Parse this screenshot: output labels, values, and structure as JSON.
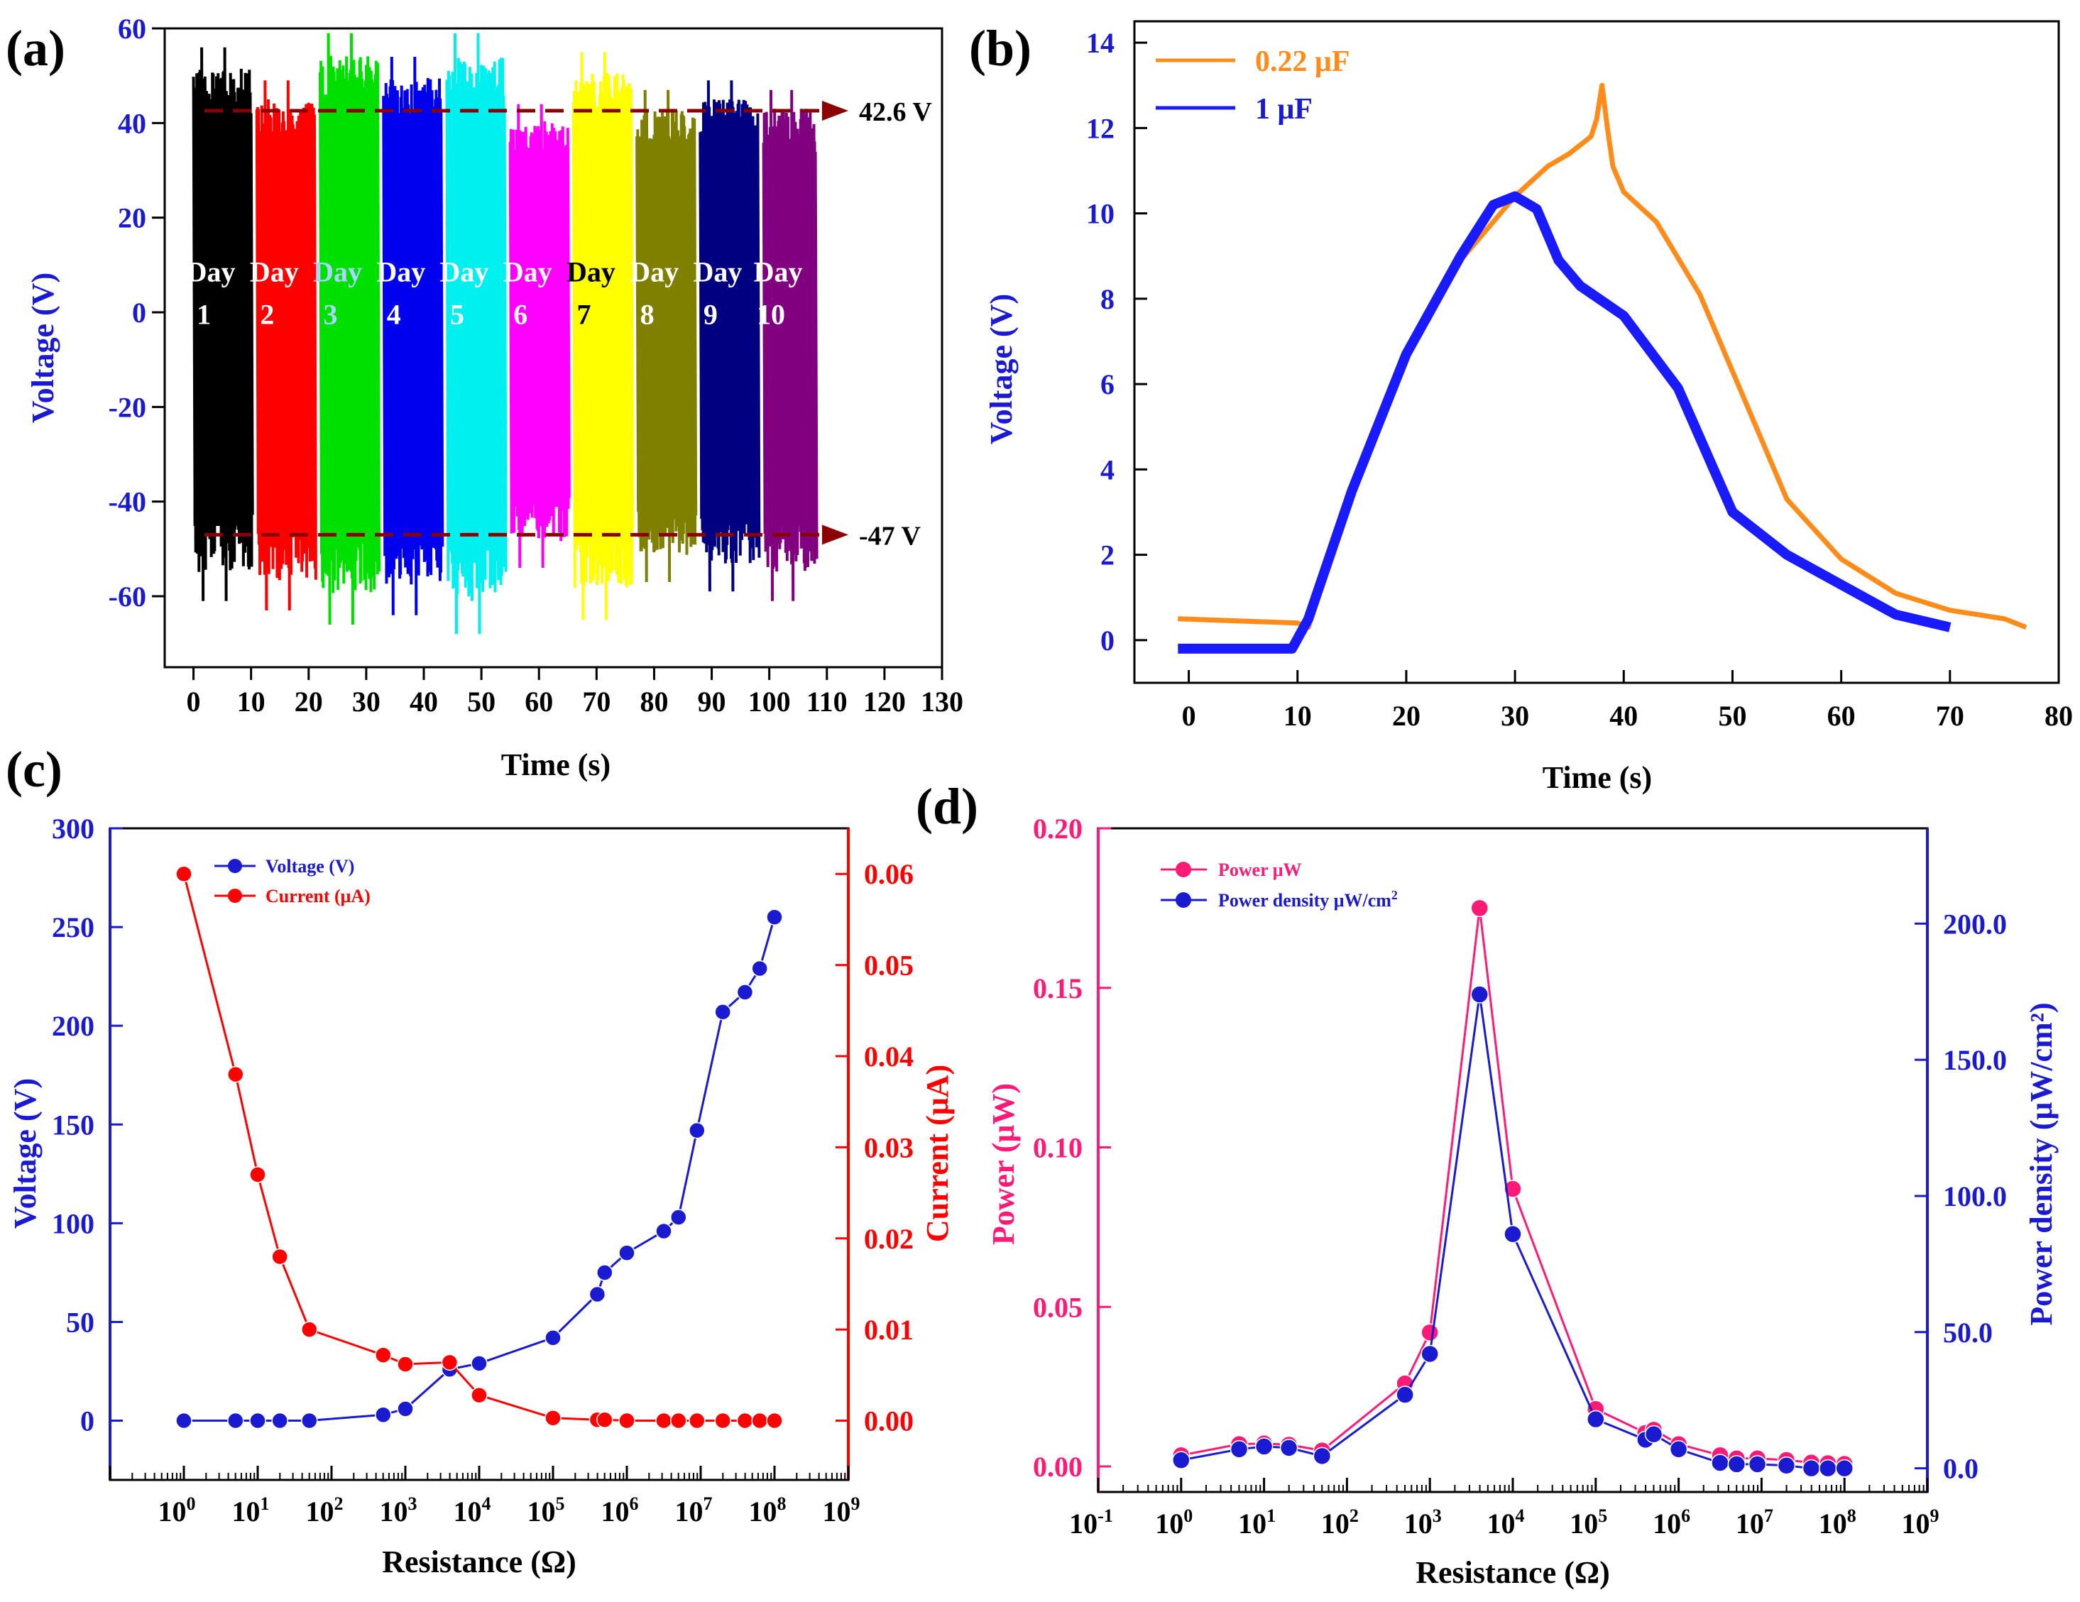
{
  "chart_data": [
    {
      "panel": "(a)",
      "type": "line",
      "xlabel": "Time (s)",
      "ylabel": "Voltage (V)",
      "xlim": [
        -5,
        130
      ],
      "ylim": [
        -75,
        60
      ],
      "xticks": [
        0,
        10,
        20,
        30,
        40,
        50,
        60,
        70,
        80,
        90,
        100,
        110,
        120,
        130
      ],
      "yticks": [
        -60,
        -40,
        -20,
        0,
        20,
        40,
        60
      ],
      "reference_lines": [
        {
          "value": 42.6,
          "label": "42.6 V"
        },
        {
          "value": -47,
          "label": "-47 V"
        }
      ],
      "series": [
        {
          "name": "Day 1",
          "day": "Day",
          "num": "1",
          "color": "#000000",
          "x_range": [
            0,
            10
          ],
          "min": -61,
          "max": 56,
          "label_color": "#ffffff"
        },
        {
          "name": "Day 2",
          "day": "Day",
          "num": "2",
          "color": "#ff0000",
          "x_range": [
            11,
            21
          ],
          "min": -63,
          "max": 49,
          "label_color": "#ffffff"
        },
        {
          "name": "Day 3",
          "day": "Day",
          "num": "3",
          "color": "#00e000",
          "x_range": [
            22,
            32
          ],
          "min": -66,
          "max": 59,
          "label_color": "#a9d6ff"
        },
        {
          "name": "Day 4",
          "day": "Day",
          "num": "4",
          "color": "#0000ee",
          "x_range": [
            33,
            43
          ],
          "min": -64,
          "max": 54,
          "label_color": "#ffffff"
        },
        {
          "name": "Day 5",
          "day": "Day",
          "num": "5",
          "color": "#00f0f0",
          "x_range": [
            44,
            54
          ],
          "min": -68,
          "max": 59,
          "label_color": "#ffffff"
        },
        {
          "name": "Day 6",
          "day": "Day",
          "num": "6",
          "color": "#ff00ff",
          "x_range": [
            55,
            65
          ],
          "min": -54,
          "max": 44,
          "label_color": "#ffffff"
        },
        {
          "name": "Day 7",
          "day": "Day",
          "num": "7",
          "color": "#ffff00",
          "x_range": [
            66,
            76
          ],
          "min": -65,
          "max": 55,
          "label_color": "#000000"
        },
        {
          "name": "Day 8",
          "day": "Day",
          "num": "8",
          "color": "#808000",
          "x_range": [
            77,
            87
          ],
          "min": -57,
          "max": 47,
          "label_color": "#ffffff"
        },
        {
          "name": "Day 9",
          "day": "Day",
          "num": "9",
          "color": "#000080",
          "x_range": [
            88,
            98
          ],
          "min": -59,
          "max": 49,
          "label_color": "#ffffff"
        },
        {
          "name": "Day 10",
          "day": "Day",
          "num": "10",
          "color": "#800080",
          "x_range": [
            99,
            108
          ],
          "min": -61,
          "max": 47,
          "label_color": "#ffffff"
        }
      ]
    },
    {
      "panel": "(b)",
      "type": "line",
      "xlabel": "Time (s)",
      "ylabel": "Voltage (V)",
      "xlim": [
        -5,
        80
      ],
      "ylim": [
        -1,
        14.5
      ],
      "xticks": [
        0,
        10,
        20,
        30,
        40,
        50,
        60,
        70,
        80
      ],
      "yticks": [
        0,
        2,
        4,
        6,
        8,
        10,
        12,
        14
      ],
      "legend_position": "top-left",
      "series": [
        {
          "name": "0.22 μF",
          "color": "#ff8c1a",
          "x": [
            -1,
            10,
            11,
            15,
            20,
            25,
            30,
            33,
            35,
            37,
            37.5,
            38,
            38.5,
            39,
            40,
            43,
            47,
            50,
            55,
            60,
            65,
            70,
            75,
            77
          ],
          "y": [
            0.5,
            0.4,
            0.3,
            3.5,
            6.6,
            8.9,
            10.4,
            11.1,
            11.4,
            11.8,
            12.2,
            13.0,
            12.0,
            11.1,
            10.5,
            9.8,
            8.1,
            6.3,
            3.3,
            1.9,
            1.1,
            0.7,
            0.5,
            0.3
          ]
        },
        {
          "name": "1 μF",
          "color": "#1a1aff",
          "x": [
            -1,
            9.5,
            11,
            15,
            20,
            25,
            28,
            30,
            32,
            34,
            36,
            40,
            45,
            50,
            55,
            60,
            65,
            70
          ],
          "y": [
            -0.2,
            -0.2,
            0.5,
            3.5,
            6.7,
            9.0,
            10.2,
            10.4,
            10.1,
            8.9,
            8.3,
            7.6,
            5.9,
            3.0,
            2.0,
            1.3,
            0.6,
            0.3
          ]
        }
      ]
    },
    {
      "panel": "(c)",
      "type": "line",
      "xlabel": "Resistance (Ω)",
      "ylabel": "Voltage (V)",
      "ylabel_right": "Current (μA)",
      "xscale": "log",
      "xlim_exp": [
        -1,
        9
      ],
      "x_tick_exponents": [
        0,
        1,
        2,
        3,
        4,
        5,
        6,
        7,
        8,
        9
      ],
      "ylim": [
        -30,
        300
      ],
      "ylim_right": [
        -0.0065,
        0.065
      ],
      "yticks": [
        0,
        50,
        100,
        150,
        200,
        250,
        300
      ],
      "yticks_right": [
        "0.00",
        "0.01",
        "0.02",
        "0.03",
        "0.04",
        "0.05",
        "0.06"
      ],
      "legend_position": "top-left",
      "series": [
        {
          "name": "Voltage (V)",
          "axis": "left",
          "color": "#1a1ad0",
          "x_log10": [
            0,
            0.7,
            1,
            1.3,
            1.7,
            2.7,
            3,
            3.6,
            4,
            5,
            5.6,
            5.7,
            6,
            6.5,
            6.7,
            6.95,
            7.3,
            7.6,
            7.8,
            8
          ],
          "values": [
            0,
            0,
            0,
            0,
            0,
            3,
            6,
            26,
            29,
            42,
            64,
            75,
            85,
            96,
            103,
            147,
            207,
            217,
            229,
            255
          ]
        },
        {
          "name": "Current (μA)",
          "axis": "right",
          "color": "#ff0000",
          "x_log10": [
            0,
            0.7,
            1,
            1.3,
            1.7,
            2.7,
            3,
            3.6,
            4,
            5,
            5.6,
            5.7,
            6,
            6.5,
            6.7,
            6.95,
            7.3,
            7.6,
            7.8,
            8
          ],
          "values": [
            0.06,
            0.038,
            0.027,
            0.018,
            0.01,
            0.0072,
            0.0062,
            0.0064,
            0.0028,
            0.0003,
            0.0001,
            0.0001,
            0,
            0,
            0,
            0,
            0,
            0,
            0,
            0
          ]
        }
      ]
    },
    {
      "panel": "(d)",
      "type": "line",
      "xlabel": "Resistance (Ω)",
      "ylabel": "Power (μW)",
      "ylabel_right": "Power density (μW/cm²)",
      "xscale": "log",
      "xlim_exp": [
        -1,
        9
      ],
      "x_tick_exponents": [
        -1,
        0,
        1,
        2,
        3,
        4,
        5,
        6,
        7,
        8,
        9
      ],
      "ylim": [
        -0.008,
        0.2
      ],
      "ylim_right": [
        -8.7,
        235
      ],
      "yticks": [
        "0.00",
        "0.05",
        "0.10",
        "0.15",
        "0.20"
      ],
      "yticks_right": [
        "0.0",
        "50.0",
        "100.0",
        "150.0",
        "200.0"
      ],
      "legend_position": "top-left",
      "series": [
        {
          "name": "Power μW",
          "axis": "left",
          "color": "#ff1a75",
          "x_log10": [
            0,
            0.7,
            1,
            1.3,
            1.7,
            2.7,
            3,
            3.6,
            4,
            5,
            5.6,
            5.7,
            6,
            6.5,
            6.7,
            6.95,
            7.3,
            7.6,
            7.8,
            8
          ],
          "values": [
            0.0035,
            0.007,
            0.0072,
            0.0068,
            0.005,
            0.026,
            0.042,
            0.175,
            0.087,
            0.018,
            0.0105,
            0.0115,
            0.007,
            0.0035,
            0.0025,
            0.0025,
            0.002,
            0.0012,
            0.001,
            0.0008
          ]
        },
        {
          "name": "Power density μW/cm²",
          "axis": "right",
          "color": "#1a1ad0",
          "x_log10": [
            0,
            0.7,
            1,
            1.3,
            1.7,
            2.7,
            3,
            3.6,
            4,
            5,
            5.6,
            5.7,
            6,
            6.5,
            6.7,
            6.95,
            7.3,
            7.6,
            7.8,
            8
          ],
          "values": [
            3,
            7,
            8,
            7.5,
            4.5,
            27,
            42,
            174,
            86,
            18,
            10.5,
            12.5,
            7,
            2,
            1.5,
            1.5,
            1,
            0,
            0,
            0
          ]
        }
      ]
    }
  ],
  "labels": {
    "a": "(a)",
    "b": "(b)",
    "c": "(c)",
    "d": "(d)",
    "legend_b1": "0.22 μF",
    "legend_b2": "1 μF",
    "legend_c1": "Voltage (V)",
    "legend_c2": "Current (μA)",
    "legend_d1": "Power μW",
    "legend_d2": "Power density μW/cm",
    "superscript_2": "2"
  },
  "colors": {
    "axis_blue": "#1a1ad0",
    "axis_red": "#ff0000",
    "axis_pink": "#ff1a75",
    "ref_line": "#8b0000"
  }
}
